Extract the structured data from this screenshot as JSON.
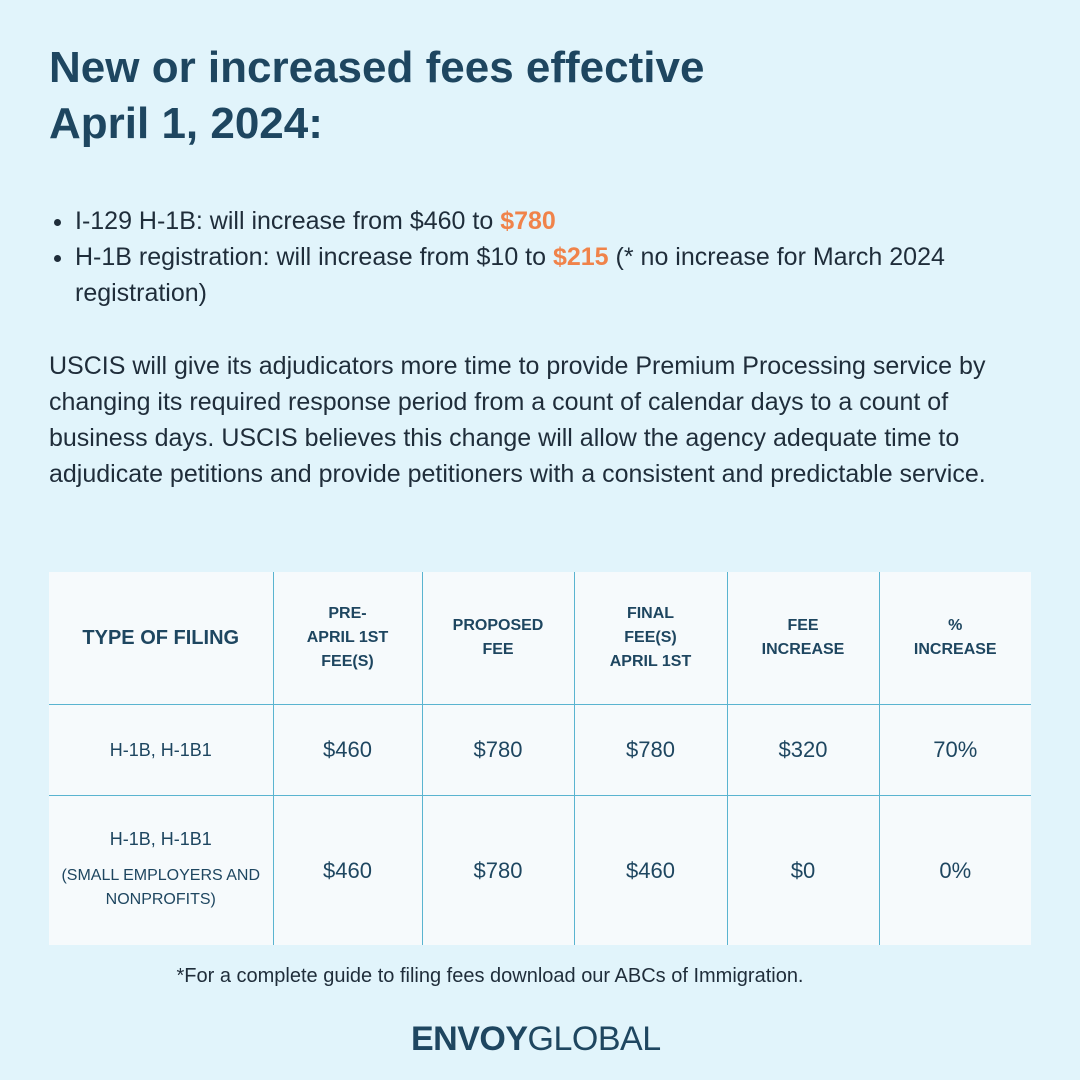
{
  "title": {
    "line1": "New or increased fees effective",
    "line2": "April 1, 2024:"
  },
  "bullets": [
    {
      "prefix": "I-129 H-1B: will increase from $460 to ",
      "highlight": "$780",
      "suffix": ""
    },
    {
      "prefix": "H-1B registration: will increase from $10 to ",
      "highlight": "$215",
      "suffix": " (* no increase for March 2024 registration)"
    }
  ],
  "paragraph": "USCIS will give its adjudicators more time to provide Premium Processing service by changing its required response period from a count of calendar days to a count of business days. USCIS believes this change will allow the agency adequate time to adjudicate petitions and provide petitioners with a consistent and predictable service.",
  "table": {
    "headers": [
      "TYPE OF FILING",
      "PRE-\nAPRIL 1ST\nFEE(S)",
      "PROPOSED\nFEE",
      "FINAL\nFEE(S)\nAPRIL 1ST",
      "FEE\nINCREASE",
      "%\nINCREASE"
    ],
    "rows": [
      {
        "type": "H-1B, H-1B1",
        "note": "",
        "cells": [
          "$460",
          "$780",
          "$780",
          "$320",
          "70%"
        ]
      },
      {
        "type": "H-1B, H-1B1",
        "note": "(SMALL EMPLOYERS AND NONPROFITS)",
        "cells": [
          "$460",
          "$780",
          "$460",
          "$0",
          "0%"
        ]
      }
    ]
  },
  "footnote": "*For a complete guide to filing fees download our ABCs of Immigration.",
  "logo": {
    "bold": "ENVOY",
    "light": "GLOBAL"
  },
  "colors": {
    "background": "#e1f4fb",
    "text": "#1e4660",
    "accent": "#f0834a",
    "table_border": "#5ab4d0"
  }
}
